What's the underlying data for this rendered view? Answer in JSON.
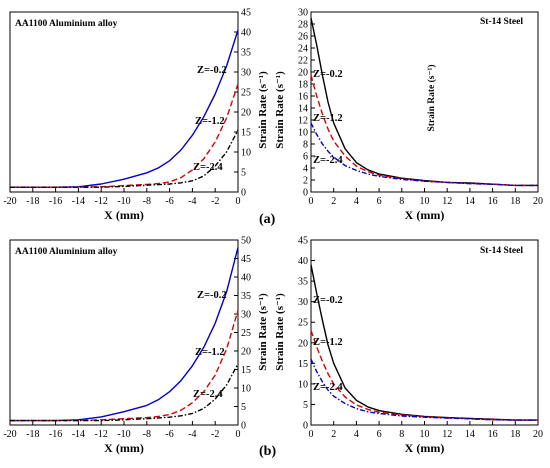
{
  "figure": {
    "label_a": "(a)",
    "label_b": "(b)"
  },
  "chart_data": [
    {
      "id": "a_left",
      "type": "line",
      "title": "AA1100 Aluminium alloy",
      "xlabel": "X (mm)",
      "ylabel": "Strain Rate (s⁻¹)",
      "xlim": [
        -20,
        0
      ],
      "ylim": [
        0,
        45
      ],
      "xticks": [
        "-20",
        "-18",
        "-16",
        "-14",
        "-12",
        "-10",
        "-8",
        "-6",
        "-4",
        "-2",
        "0"
      ],
      "yticks": [
        "0",
        "5",
        "10",
        "15",
        "20",
        "25",
        "30",
        "35",
        "40",
        "45"
      ],
      "grid": false,
      "series": [
        {
          "name": "Z=-0.2",
          "color": "#0000cc",
          "dash": "solid",
          "x": [
            -20,
            -16,
            -14,
            -12,
            -10,
            -8,
            -7,
            -6,
            -5,
            -4,
            -3,
            -2,
            -1,
            0
          ],
          "y": [
            1.2,
            1.2,
            1.3,
            2.0,
            3.2,
            4.8,
            6.0,
            7.8,
            10.5,
            14.2,
            18.8,
            24.5,
            31.5,
            40.5
          ]
        },
        {
          "name": "Z=-1.2",
          "color": "#dd0000",
          "dash": "dashed",
          "x": [
            -20,
            -16,
            -14,
            -12,
            -10,
            -8,
            -7,
            -6,
            -5,
            -4,
            -3,
            -2,
            -1,
            0
          ],
          "y": [
            1.2,
            1.2,
            1.2,
            1.3,
            1.6,
            1.9,
            2.1,
            2.5,
            3.6,
            5.5,
            8.3,
            12.5,
            18.5,
            27.0
          ]
        },
        {
          "name": "Z=-2.4",
          "color": "#000000",
          "dash": "dashdot",
          "x": [
            -20,
            -16,
            -14,
            -12,
            -10,
            -8,
            -6,
            -5,
            -4,
            -3,
            -2,
            -1,
            0
          ],
          "y": [
            1.2,
            1.2,
            1.2,
            1.2,
            1.4,
            1.7,
            2.0,
            2.3,
            2.8,
            4.0,
            6.5,
            10.0,
            15.5
          ]
        }
      ],
      "annotations": [
        "Z=-0.2",
        "Z=-1.2",
        "Z=-2.4"
      ]
    },
    {
      "id": "a_right",
      "type": "line",
      "title": "St-14 Steel",
      "xlabel": "X (mm)",
      "ylabel": "Strain Rate (s⁻¹)",
      "extra_label": "Strain Rate (s⁻¹)",
      "xlim": [
        0,
        20
      ],
      "ylim": [
        0,
        30
      ],
      "xticks": [
        "0",
        "2",
        "4",
        "6",
        "8",
        "10",
        "12",
        "14",
        "16",
        "18",
        "20"
      ],
      "yticks": [
        "0",
        "2",
        "4",
        "6",
        "8",
        "10",
        "12",
        "14",
        "16",
        "18",
        "20",
        "22",
        "24",
        "26",
        "28",
        "30"
      ],
      "grid": false,
      "series": [
        {
          "name": "Z=-0.2",
          "color": "#000000",
          "dash": "solid",
          "x": [
            0,
            0.5,
            1,
            1.5,
            2,
            3,
            4,
            5,
            6,
            8,
            10,
            12,
            14,
            16,
            18,
            20
          ],
          "y": [
            29.0,
            24.5,
            19.5,
            15.0,
            11.5,
            7.2,
            4.9,
            3.7,
            3.0,
            2.3,
            1.9,
            1.6,
            1.5,
            1.3,
            1.1,
            1.1
          ]
        },
        {
          "name": "Z=-1.2",
          "color": "#dd0000",
          "dash": "dashed",
          "x": [
            0,
            0.5,
            1,
            1.5,
            2,
            3,
            4,
            5,
            6,
            8,
            10,
            12,
            14,
            16,
            18,
            20
          ],
          "y": [
            19.5,
            16.0,
            13.0,
            10.5,
            8.5,
            6.0,
            4.3,
            3.4,
            2.8,
            2.2,
            1.8,
            1.6,
            1.4,
            1.3,
            1.1,
            1.1
          ]
        },
        {
          "name": "Z=-2.4",
          "color": "#0000cc",
          "dash": "dashdot",
          "x": [
            0,
            0.5,
            1,
            1.5,
            2,
            3,
            4,
            5,
            6,
            8,
            10,
            12,
            14,
            16,
            18,
            20
          ],
          "y": [
            11.5,
            9.6,
            8.0,
            6.8,
            5.8,
            4.4,
            3.6,
            3.0,
            2.6,
            2.1,
            1.8,
            1.6,
            1.4,
            1.3,
            1.1,
            1.1
          ]
        }
      ],
      "annotations": [
        "Z=-0.2",
        "Z=-1.2",
        "Z=-2.4"
      ]
    },
    {
      "id": "b_left",
      "type": "line",
      "title": "AA1100 Aluminium alloy",
      "xlabel": "X (mm)",
      "ylabel": "Strain Rate (s⁻¹)",
      "xlim": [
        -20,
        0
      ],
      "ylim": [
        0,
        50
      ],
      "xticks": [
        "-20",
        "-18",
        "-16",
        "-14",
        "-12",
        "-10",
        "-8",
        "-6",
        "-4",
        "-2",
        "0"
      ],
      "yticks": [
        "0",
        "5",
        "10",
        "15",
        "20",
        "25",
        "30",
        "35",
        "40",
        "45",
        "50"
      ],
      "grid": false,
      "series": [
        {
          "name": "Z=-0.2",
          "color": "#0000cc",
          "dash": "solid",
          "x": [
            -20,
            -16,
            -14,
            -12,
            -10,
            -8,
            -7,
            -6,
            -5,
            -4,
            -3,
            -2,
            -1,
            0
          ],
          "y": [
            1.2,
            1.2,
            1.4,
            2.2,
            3.6,
            5.3,
            6.8,
            9.0,
            12.0,
            16.0,
            21.0,
            27.5,
            36.0,
            48.0
          ]
        },
        {
          "name": "Z=-1.2",
          "color": "#dd0000",
          "dash": "dashed",
          "x": [
            -20,
            -16,
            -14,
            -12,
            -10,
            -8,
            -7,
            -6,
            -5,
            -4,
            -3,
            -2,
            -1,
            0
          ],
          "y": [
            1.2,
            1.2,
            1.2,
            1.4,
            1.7,
            2.0,
            2.3,
            2.8,
            4.0,
            6.0,
            9.0,
            13.5,
            20.5,
            31.0
          ]
        },
        {
          "name": "Z=-2.4",
          "color": "#000000",
          "dash": "dashdot",
          "x": [
            -20,
            -16,
            -14,
            -12,
            -10,
            -8,
            -6,
            -5,
            -4,
            -3,
            -2,
            -1,
            0
          ],
          "y": [
            1.2,
            1.2,
            1.2,
            1.2,
            1.4,
            1.7,
            2.1,
            2.5,
            3.1,
            4.5,
            7.0,
            10.8,
            16.5
          ]
        }
      ],
      "annotations": [
        "Z=-0.2",
        "Z=-1.2",
        "Z=-2.4"
      ]
    },
    {
      "id": "b_right",
      "type": "line",
      "title": "St-14 Steel",
      "xlabel": "X (mm)",
      "ylabel": "Strain Rate (s⁻¹)",
      "xlim": [
        0,
        20
      ],
      "ylim": [
        0,
        45
      ],
      "xticks": [
        "0",
        "2",
        "4",
        "6",
        "8",
        "10",
        "12",
        "14",
        "16",
        "18",
        "20"
      ],
      "yticks": [
        "0",
        "5",
        "10",
        "15",
        "20",
        "25",
        "30",
        "35",
        "40",
        "45"
      ],
      "grid": false,
      "series": [
        {
          "name": "Z=-0.2",
          "color": "#000000",
          "dash": "solid",
          "x": [
            0,
            0.5,
            1,
            1.5,
            2,
            3,
            4,
            5,
            6,
            8,
            10,
            12,
            14,
            16,
            18,
            20
          ],
          "y": [
            39.0,
            32.0,
            25.5,
            19.5,
            15.0,
            9.0,
            6.0,
            4.4,
            3.5,
            2.6,
            2.1,
            1.8,
            1.6,
            1.4,
            1.2,
            1.2
          ]
        },
        {
          "name": "Z=-1.2",
          "color": "#dd0000",
          "dash": "dashed",
          "x": [
            0,
            0.5,
            1,
            1.5,
            2,
            3,
            4,
            5,
            6,
            8,
            10,
            12,
            14,
            16,
            18,
            20
          ],
          "y": [
            23.0,
            19.0,
            15.5,
            12.5,
            10.0,
            6.8,
            4.9,
            3.8,
            3.1,
            2.4,
            2.0,
            1.7,
            1.5,
            1.3,
            1.2,
            1.2
          ]
        },
        {
          "name": "Z=-2.4",
          "color": "#0000cc",
          "dash": "dashdot",
          "x": [
            0,
            0.5,
            1,
            1.5,
            2,
            3,
            4,
            5,
            6,
            8,
            10,
            12,
            14,
            16,
            18,
            20
          ],
          "y": [
            16.0,
            13.0,
            10.5,
            8.5,
            7.0,
            5.2,
            4.0,
            3.2,
            2.8,
            2.2,
            1.9,
            1.7,
            1.5,
            1.3,
            1.2,
            1.2
          ]
        }
      ],
      "annotations": [
        "Z=-0.2",
        "Z=-1.2",
        "Z=-2.4"
      ]
    }
  ]
}
